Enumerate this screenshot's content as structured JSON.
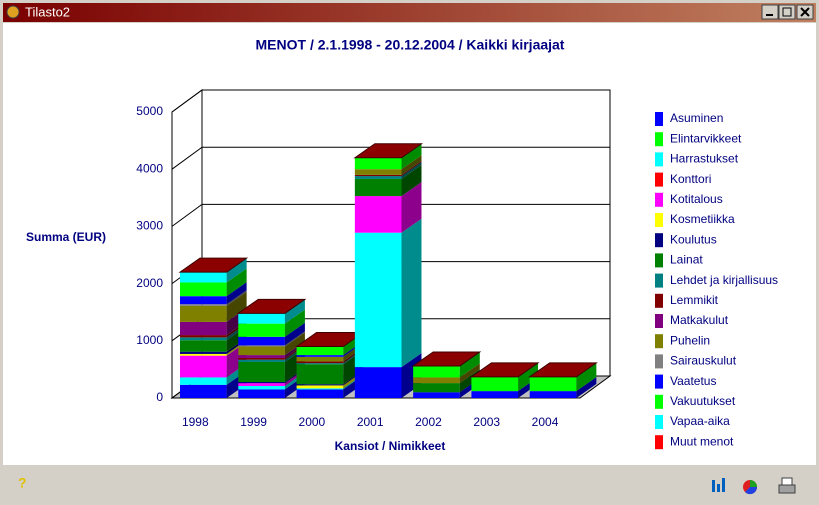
{
  "window_title": "Tilasto2",
  "chart_data": {
    "type": "bar3d_stacked",
    "title": "MENOT / 2.1.1998 - 20.12.2004 / Kaikki kirjaajat",
    "y_label": "Summa (EUR)",
    "x_label": "Kansiot / Nimikkeet",
    "categories": [
      "1998",
      "1999",
      "2000",
      "2001",
      "2002",
      "2003",
      "2004"
    ],
    "ylim": [
      0,
      5000
    ],
    "yticks": [
      0,
      1000,
      2000,
      3000,
      4000,
      5000
    ],
    "grid": true,
    "series": [
      {
        "name": "Asuminen",
        "color": "#0000ff",
        "values": [
          230,
          150,
          150,
          540,
          100,
          120,
          120
        ]
      },
      {
        "name": "Elintarvikkeet",
        "color": "#00ff00",
        "values": [
          0,
          0,
          0,
          0,
          0,
          0,
          0
        ]
      },
      {
        "name": "Harrastukset",
        "color": "#00ffff",
        "values": [
          130,
          60,
          20,
          2350,
          0,
          0,
          0
        ]
      },
      {
        "name": "Konttori",
        "color": "#ff0000",
        "values": [
          0,
          0,
          0,
          0,
          0,
          0,
          0
        ]
      },
      {
        "name": "Kotitalous",
        "color": "#ff00ff",
        "values": [
          380,
          50,
          0,
          640,
          0,
          0,
          0
        ]
      },
      {
        "name": "Kosmetiikka",
        "color": "#ffff00",
        "values": [
          30,
          0,
          50,
          0,
          0,
          0,
          0
        ]
      },
      {
        "name": "Koulutus",
        "color": "#000080",
        "values": [
          40,
          20,
          20,
          0,
          0,
          0,
          0
        ]
      },
      {
        "name": "Lainat",
        "color": "#008000",
        "values": [
          200,
          350,
          350,
          300,
          160,
          0,
          0
        ]
      },
      {
        "name": "Lehdet ja kirjallisuus",
        "color": "#008080",
        "values": [
          50,
          40,
          20,
          50,
          0,
          0,
          0
        ]
      },
      {
        "name": "Lemmikit",
        "color": "#800000",
        "values": [
          40,
          30,
          30,
          20,
          0,
          0,
          0
        ]
      },
      {
        "name": "Matkakulut",
        "color": "#800080",
        "values": [
          230,
          50,
          0,
          0,
          0,
          0,
          0
        ]
      },
      {
        "name": "Puhelin",
        "color": "#808000",
        "values": [
          280,
          150,
          80,
          100,
          100,
          0,
          0
        ]
      },
      {
        "name": "Sairauskulut",
        "color": "#808080",
        "values": [
          30,
          20,
          0,
          0,
          0,
          0,
          0
        ]
      },
      {
        "name": "Vaatetus",
        "color": "#0000ff",
        "values": [
          140,
          150,
          30,
          0,
          0,
          0,
          0
        ]
      },
      {
        "name": "Vakuutukset",
        "color": "#00ff00",
        "values": [
          240,
          230,
          150,
          200,
          200,
          250,
          250
        ]
      },
      {
        "name": "Vapaa-aika",
        "color": "#00ffff",
        "values": [
          180,
          180,
          0,
          0,
          0,
          0,
          0
        ]
      },
      {
        "name": "Muut menot",
        "color": "#ff0000",
        "values": [
          0,
          0,
          0,
          0,
          0,
          0,
          0
        ]
      }
    ]
  }
}
